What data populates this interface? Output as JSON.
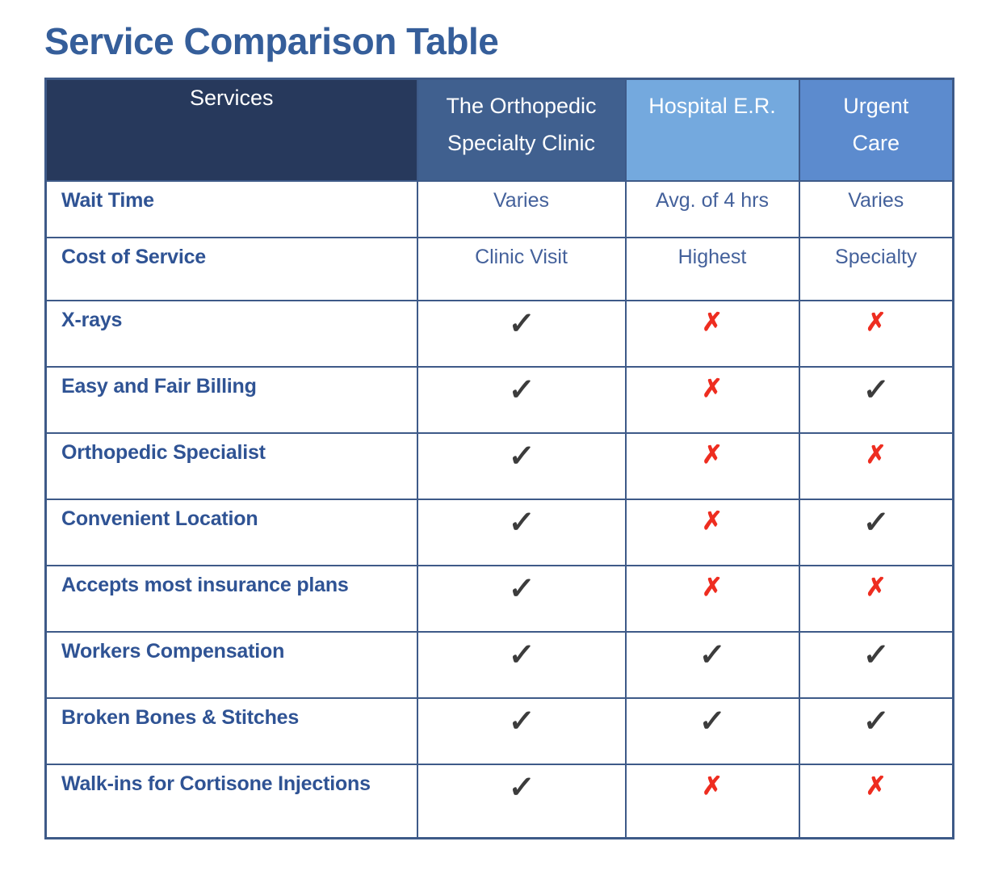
{
  "page": {
    "title": "Service Comparison Table"
  },
  "table": {
    "columns": [
      {
        "id": "services",
        "label": "Services",
        "bg": "#27395C"
      },
      {
        "id": "clinic",
        "label": "The Orthopedic Specialty Clinic",
        "bg": "#40608F"
      },
      {
        "id": "er",
        "label": "Hospital E.R.",
        "bg": "#74A9DE"
      },
      {
        "id": "urgent",
        "label": "Urgent Care",
        "bg": "#5C8BCE"
      }
    ],
    "rows": [
      {
        "service": "Wait Time",
        "values": [
          "Varies",
          "Avg. of 4 hrs",
          "Varies"
        ]
      },
      {
        "service": "Cost of Service",
        "values": [
          "Clinic Visit",
          "Highest",
          "Specialty"
        ]
      },
      {
        "service": "X-rays",
        "values": [
          "check",
          "cross",
          "cross"
        ]
      },
      {
        "service": "Easy and Fair Billing",
        "values": [
          "check",
          "cross",
          "check"
        ]
      },
      {
        "service": "Orthopedic Specialist",
        "values": [
          "check",
          "cross",
          "cross"
        ]
      },
      {
        "service": "Convenient Location",
        "values": [
          "check",
          "cross",
          "check"
        ]
      },
      {
        "service": "Accepts most insurance plans",
        "values": [
          "check",
          "cross",
          "cross"
        ]
      },
      {
        "service": "Workers Compensation",
        "values": [
          "check",
          "check",
          "check"
        ]
      },
      {
        "service": "Broken Bones & Stitches",
        "values": [
          "check",
          "check",
          "check"
        ]
      },
      {
        "service": "Walk-ins for Cortisone Injections",
        "values": [
          "check",
          "cross",
          "cross"
        ]
      }
    ],
    "symbols": {
      "check": "✓",
      "cross": "✗"
    },
    "colors": {
      "title_text": "#355E9A",
      "border": "#3E5A88",
      "header_text": "#FFFFFF",
      "service_text": "#2F5394",
      "value_text": "#44619B",
      "check_mark": "#3C3C3C",
      "cross_mark": "#EE2D20"
    }
  }
}
